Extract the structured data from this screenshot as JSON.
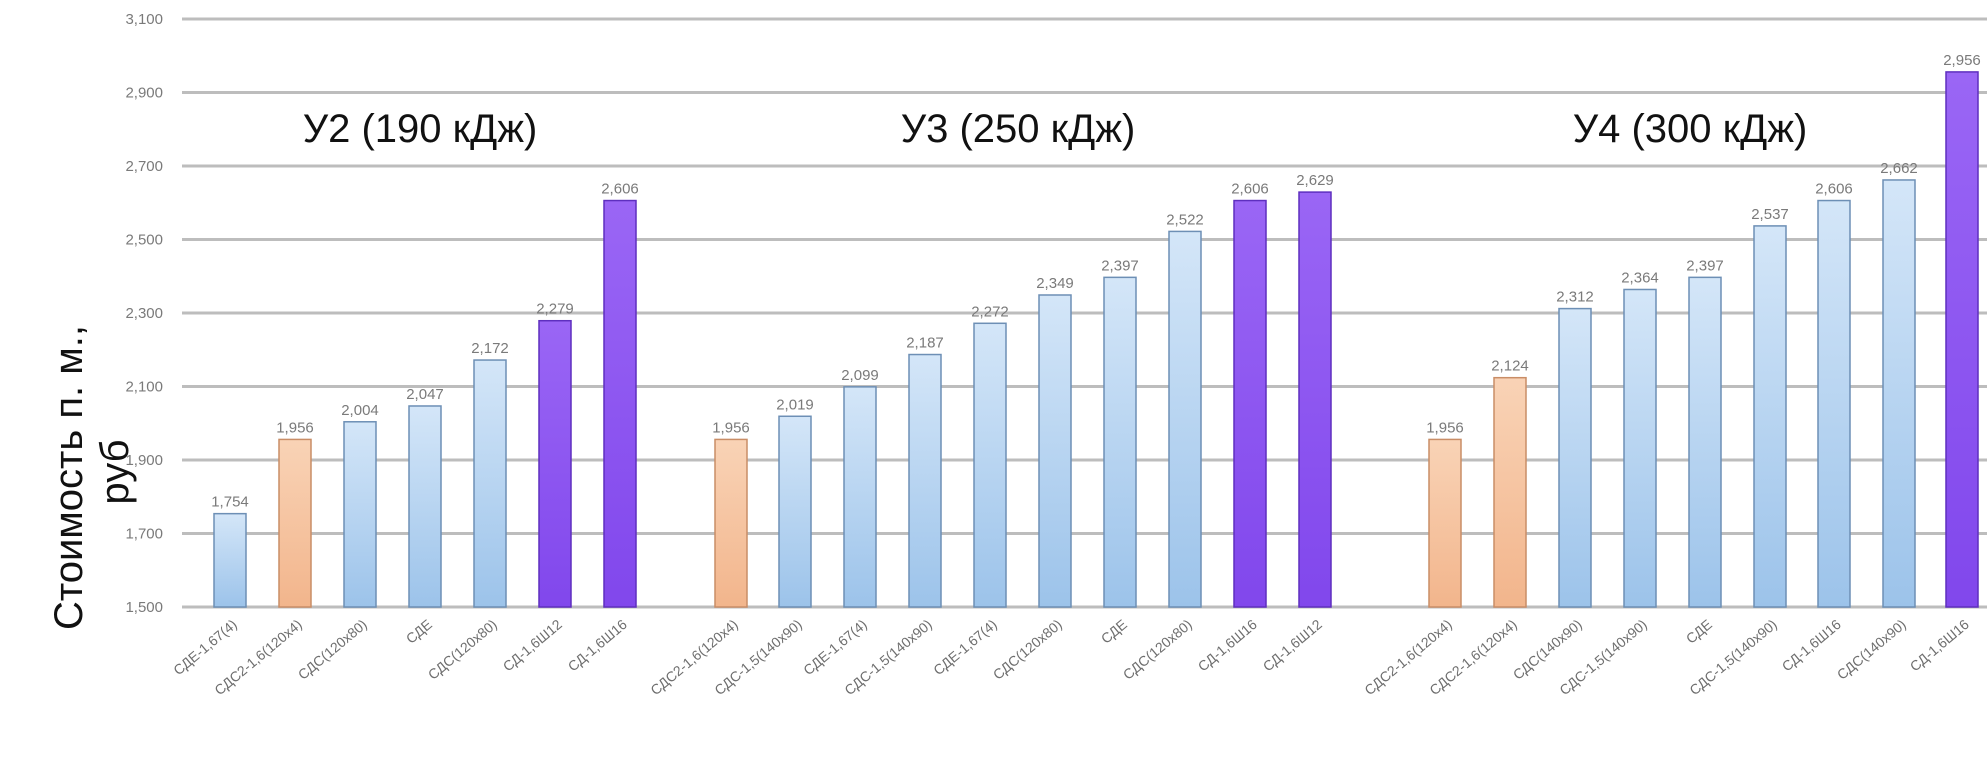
{
  "chart_data": {
    "type": "bar",
    "ylabel_lines": [
      "Стоимость п. м.,",
      "руб"
    ],
    "ylim": [
      1500,
      3100
    ],
    "yticks": [
      1500,
      1700,
      1900,
      2100,
      2300,
      2500,
      2700,
      2900,
      3100
    ],
    "ytick_labels": [
      "1,500",
      "1,700",
      "1,900",
      "2,100",
      "2,300",
      "2,500",
      "2,700",
      "2,900",
      "3,100"
    ],
    "grid": true,
    "colors": {
      "blue": "#b5d3f0",
      "orange": "#f6c4a0",
      "purple": "#8d55f0"
    },
    "groups": [
      {
        "title": "У2 (190 кДж)",
        "bars": [
          {
            "category": "СДЕ-1,67(4)",
            "value": 1754,
            "label": "1,754",
            "color": "blue"
          },
          {
            "category": "СДС2-1,6(120x4)",
            "value": 1956,
            "label": "1,956",
            "color": "orange"
          },
          {
            "category": "СДС(120x80)",
            "value": 2004,
            "label": "2,004",
            "color": "blue"
          },
          {
            "category": "СДЕ",
            "value": 2047,
            "label": "2,047",
            "color": "blue"
          },
          {
            "category": "СДС(120x80)",
            "value": 2172,
            "label": "2,172",
            "color": "blue"
          },
          {
            "category": "СД-1,6Ш12",
            "value": 2279,
            "label": "2,279",
            "color": "purple"
          },
          {
            "category": "СД-1,6Ш16",
            "value": 2606,
            "label": "2,606",
            "color": "purple"
          }
        ]
      },
      {
        "title": "У3 (250 кДж)",
        "bars": [
          {
            "category": "СДС2-1,6(120x4)",
            "value": 1956,
            "label": "1,956",
            "color": "orange"
          },
          {
            "category": "СДС-1,5(140x90)",
            "value": 2019,
            "label": "2,019",
            "color": "blue"
          },
          {
            "category": "СДЕ-1,67(4)",
            "value": 2099,
            "label": "2,099",
            "color": "blue"
          },
          {
            "category": "СДС-1,5(140x90)",
            "value": 2187,
            "label": "2,187",
            "color": "blue"
          },
          {
            "category": "СДЕ-1,67(4)",
            "value": 2272,
            "label": "2,272",
            "color": "blue"
          },
          {
            "category": "СДС(120x80)",
            "value": 2349,
            "label": "2,349",
            "color": "blue"
          },
          {
            "category": "СДЕ",
            "value": 2397,
            "label": "2,397",
            "color": "blue"
          },
          {
            "category": "СДС(120x80)",
            "value": 2522,
            "label": "2,522",
            "color": "blue"
          },
          {
            "category": "СД-1,6Ш16",
            "value": 2606,
            "label": "2,606",
            "color": "purple"
          },
          {
            "category": "СД-1,6Ш12",
            "value": 2629,
            "label": "2,629",
            "color": "purple"
          }
        ]
      },
      {
        "title": "У4 (300 кДж)",
        "bars": [
          {
            "category": "СДС2-1,6(120x4)",
            "value": 1956,
            "label": "1,956",
            "color": "orange"
          },
          {
            "category": "СДС2-1,6(120x4)",
            "value": 2124,
            "label": "2,124",
            "color": "orange"
          },
          {
            "category": "СДС(140x90)",
            "value": 2312,
            "label": "2,312",
            "color": "blue"
          },
          {
            "category": "СДС-1,5(140x90)",
            "value": 2364,
            "label": "2,364",
            "color": "blue"
          },
          {
            "category": "СДЕ",
            "value": 2397,
            "label": "2,397",
            "color": "blue"
          },
          {
            "category": "СДС-1,5(140x90)",
            "value": 2537,
            "label": "2,537",
            "color": "blue"
          },
          {
            "category": "СД-1,6Ш16",
            "value": 2606,
            "label": "2,606",
            "color": "blue"
          },
          {
            "category": "СДС(140x90)",
            "value": 2662,
            "label": "2,662",
            "color": "blue"
          },
          {
            "category": "СД-1,6Ш16",
            "value": 2956,
            "label": "2,956",
            "color": "purple"
          }
        ]
      }
    ]
  }
}
